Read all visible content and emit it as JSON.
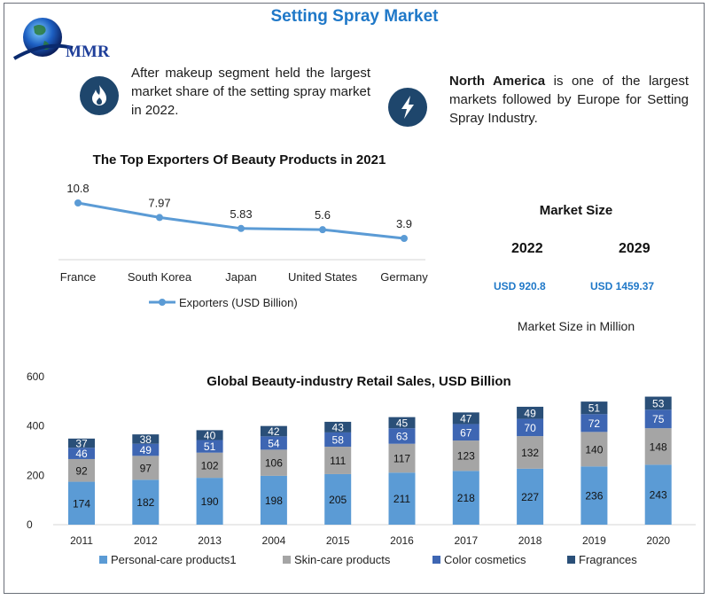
{
  "header": {
    "title": "Setting Spray Market",
    "logo_text": "MMR"
  },
  "notes": {
    "left": "After makeup segment held the largest market share of the setting spray market in 2022.",
    "right_bold": "North America",
    "right_rest": " is one of the largest markets followed by Europe for Setting Spray Industry."
  },
  "icons": {
    "left": "flame-icon",
    "right": "lightning-icon"
  },
  "market_size": {
    "title": "Market Size",
    "year1": "2022",
    "value1": "USD 920.8",
    "year2": "2029",
    "value2": "USD 1459.37",
    "unit": "Market Size in Million"
  },
  "colors": {
    "title": "#1f78c8",
    "line": "#5b9bd5",
    "personal": "#5b9bd5",
    "skin": "#a5a5a5",
    "color_cosmetics": "#3e66b3",
    "fragrances": "#2a4f78",
    "icon_bg": "#1e466c"
  },
  "chart_data": [
    {
      "type": "line",
      "title": "The Top Exporters Of Beauty Products in 2021",
      "categories": [
        "France",
        "South Korea",
        "Japan",
        "United States",
        "Germany"
      ],
      "series": [
        {
          "name": "Exporters (USD Billion)",
          "values": [
            10.8,
            7.97,
            5.83,
            5.6,
            3.9
          ]
        }
      ],
      "value_labels": [
        "10.8",
        "7.97",
        "5.83",
        "5.6",
        "3.9"
      ],
      "legend": "bottom",
      "grid": false
    },
    {
      "type": "bar",
      "stacked": true,
      "title": "Global Beauty-industry Retail Sales, USD Billion",
      "categories": [
        "2011",
        "2012",
        "2013",
        "2004",
        "2015",
        "2016",
        "2017",
        "2018",
        "2019",
        "2020"
      ],
      "series": [
        {
          "name": "Personal-care products1",
          "values": [
            174,
            182,
            190,
            198,
            205,
            211,
            218,
            227,
            236,
            243
          ]
        },
        {
          "name": "Skin-care products",
          "values": [
            92,
            97,
            102,
            106,
            111,
            117,
            123,
            132,
            140,
            148
          ]
        },
        {
          "name": "Color cosmetics",
          "values": [
            46,
            49,
            51,
            54,
            58,
            63,
            67,
            70,
            72,
            75
          ]
        },
        {
          "name": "Fragrances",
          "values": [
            37,
            38,
            40,
            42,
            43,
            45,
            47,
            49,
            51,
            53
          ]
        }
      ],
      "y_ticks": [
        "0",
        "200",
        "400",
        "600"
      ],
      "ylim": [
        0,
        600
      ],
      "legend": "bottom",
      "grid": false
    }
  ]
}
